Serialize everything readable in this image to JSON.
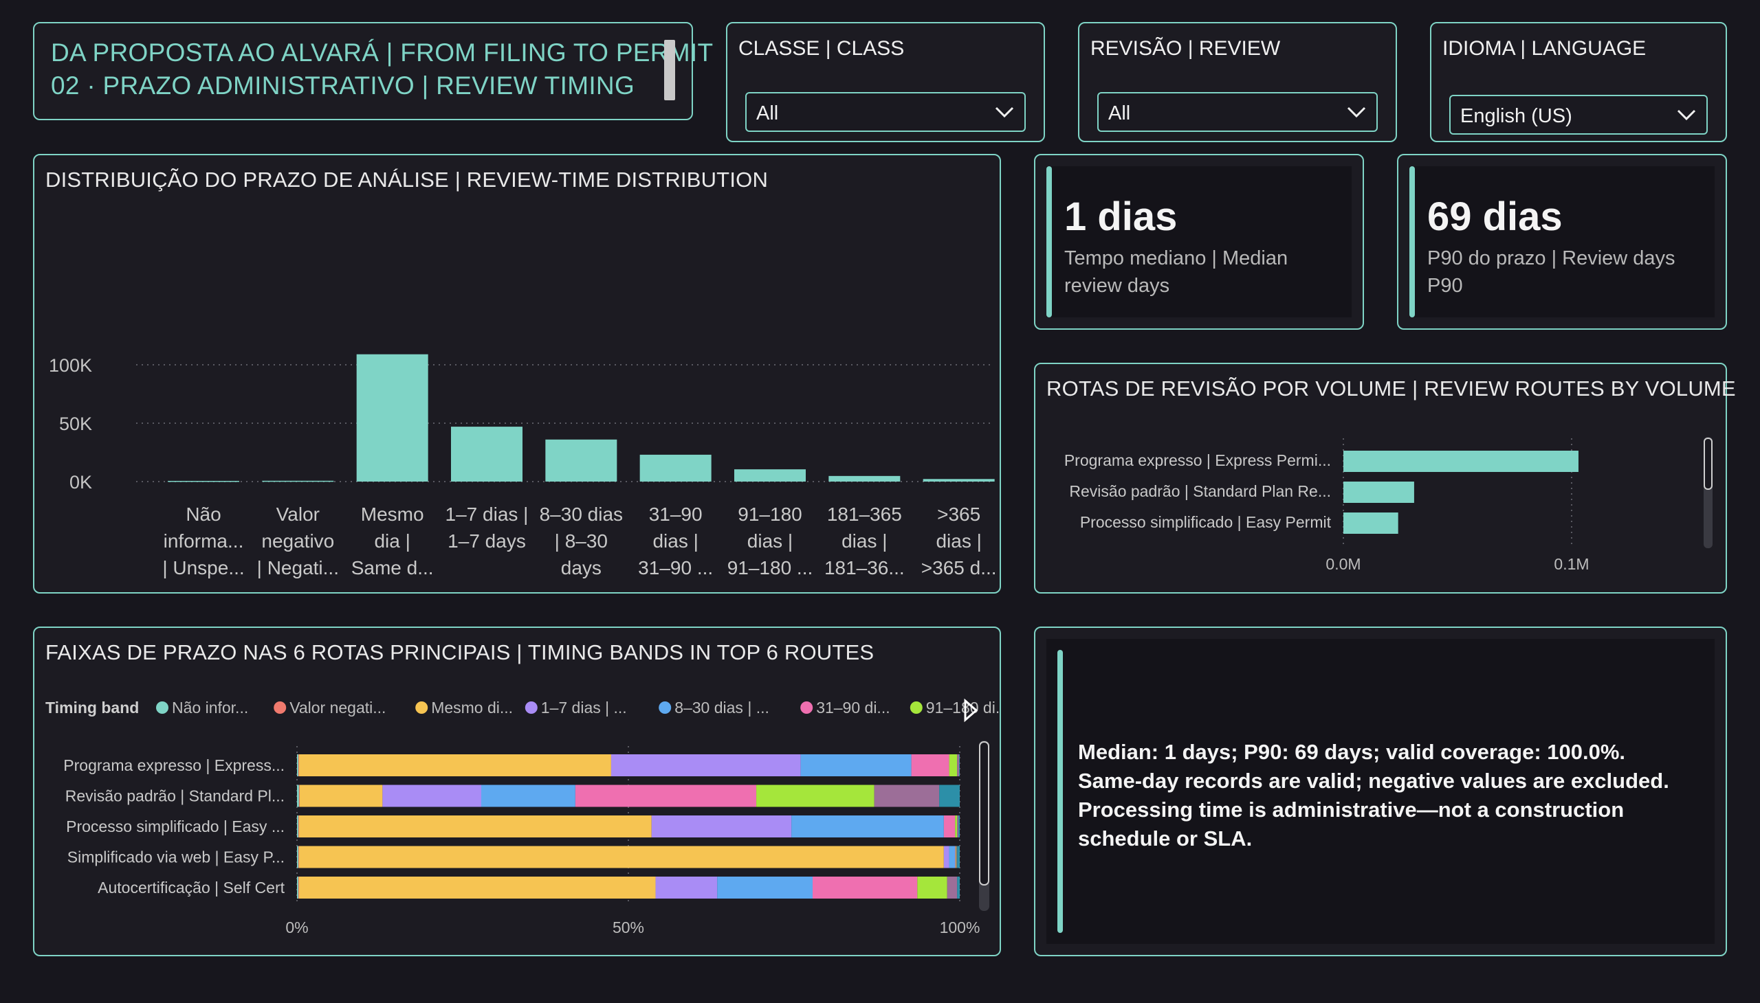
{
  "header": {
    "line1": "DA PROPOSTA AO ALVARÁ | FROM FILING TO PERMIT",
    "line2": "02 · PRAZO ADMINISTRATIVO | REVIEW TIMING"
  },
  "slicers": [
    {
      "label": "CLASSE | CLASS",
      "value": "All"
    },
    {
      "label": "REVISÃO | REVIEW",
      "value": "All"
    },
    {
      "label": "IDIOMA | LANGUAGE",
      "value": "English (US)"
    }
  ],
  "kpis": [
    {
      "value": "1 dias",
      "label": "Tempo mediano | Median review days"
    },
    {
      "value": "69 dias",
      "label": "P90 do prazo | Review days P90"
    }
  ],
  "note": "Median: 1 days; P90: 69 days; valid coverage: 100.0%. Same-day records are valid; negative values are excluded. Processing time is administrative—not a construction schedule or SLA.",
  "colors": {
    "accent": "#7fd4c6",
    "background": "#17161d"
  },
  "chart_data": [
    {
      "type": "bar",
      "title": "DISTRIBUIÇÃO DO PRAZO DE ANÁLISE | REVIEW-TIME DISTRIBUTION",
      "categories": [
        [
          "Não",
          "informa...",
          "| Unspe..."
        ],
        [
          "Valor",
          "negativo",
          "| Negati..."
        ],
        [
          "Mesmo",
          "dia |",
          "Same d..."
        ],
        [
          "1–7 dias |",
          "1–7 days"
        ],
        [
          "8–30 dias",
          "| 8–30",
          "days"
        ],
        [
          "31–90",
          "dias |",
          "31–90 ..."
        ],
        [
          "91–180",
          "dias |",
          "91–180 ..."
        ],
        [
          "181–365",
          "dias |",
          "181–36..."
        ],
        [
          ">365",
          "dias |",
          ">365 d..."
        ]
      ],
      "values": [
        600,
        700,
        109000,
        47000,
        36000,
        23000,
        10500,
        4800,
        2200
      ],
      "yticks": [
        {
          "v": 0,
          "label": "0K"
        },
        {
          "v": 50000,
          "label": "50K"
        },
        {
          "v": 100000,
          "label": "100K"
        }
      ],
      "ylim": [
        0,
        110000
      ],
      "color": "#7fd4c6",
      "grid": true
    },
    {
      "type": "bar",
      "orientation": "horizontal",
      "title": "ROTAS DE REVISÃO POR VOLUME | REVIEW ROUTES BY VOLUME",
      "categories": [
        "Programa expresso | Express Permi...",
        "Revisão padrão | Standard Plan Re...",
        "Processo simplificado | Easy Permit"
      ],
      "values": [
        0.103,
        0.031,
        0.024
      ],
      "xticks": [
        {
          "v": 0,
          "label": "0.0M"
        },
        {
          "v": 0.1,
          "label": "0.1M"
        }
      ],
      "xlim": [
        0,
        0.1
      ],
      "color": "#7fd4c6",
      "grid": true
    },
    {
      "type": "bar",
      "orientation": "horizontal",
      "stacked": "percent",
      "title": "FAIXAS DE PRAZO NAS 6 ROTAS PRINCIPAIS | TIMING BANDS IN TOP 6 ROUTES",
      "legend_title": "Timing band",
      "legend_position": "top",
      "categories": [
        "Programa expresso | Express...",
        "Revisão padrão | Standard Pl...",
        "Processo simplificado | Easy ...",
        "Simplificado via web | Easy P...",
        "Autocertificação | Self Cert"
      ],
      "series": [
        {
          "name": "Não infor...",
          "color": "#7fd4c6",
          "values": [
            0.2,
            0.3,
            0.2,
            0.2,
            0.2
          ]
        },
        {
          "name": "Valor negati...",
          "color": "#f07a6e",
          "values": [
            0.1,
            0.1,
            0.1,
            0.1,
            0.1
          ]
        },
        {
          "name": "Mesmo di...",
          "color": "#f6c452",
          "values": [
            47.1,
            12.5,
            53.2,
            97.2,
            53.8
          ]
        },
        {
          "name": "1–7 dias | ...",
          "color": "#a98cf5",
          "values": [
            28.6,
            14.9,
            21.1,
            0.8,
            9.3
          ]
        },
        {
          "name": "8–30 dias | ...",
          "color": "#5ea9f0",
          "values": [
            16.7,
            14.2,
            23.0,
            0.9,
            14.4
          ]
        },
        {
          "name": "31–90 di...",
          "color": "#ef6fb0",
          "values": [
            5.7,
            27.3,
            1.7,
            0.1,
            15.8
          ]
        },
        {
          "name": "91–180 di...",
          "color": "#a5e63b",
          "values": [
            1.2,
            17.8,
            0.3,
            0.1,
            4.5
          ]
        },
        {
          "name": "",
          "color": "#9c6e98",
          "values": [
            0.3,
            9.8,
            0.2,
            0.1,
            1.5
          ]
        },
        {
          "name": "",
          "color": "#2c8fa8",
          "values": [
            0.1,
            3.1,
            0.2,
            0.4,
            0.4
          ]
        }
      ],
      "xticks": [
        {
          "v": 0,
          "label": "0%"
        },
        {
          "v": 50,
          "label": "50%"
        },
        {
          "v": 100,
          "label": "100%"
        }
      ],
      "xlim": [
        0,
        100
      ]
    }
  ]
}
